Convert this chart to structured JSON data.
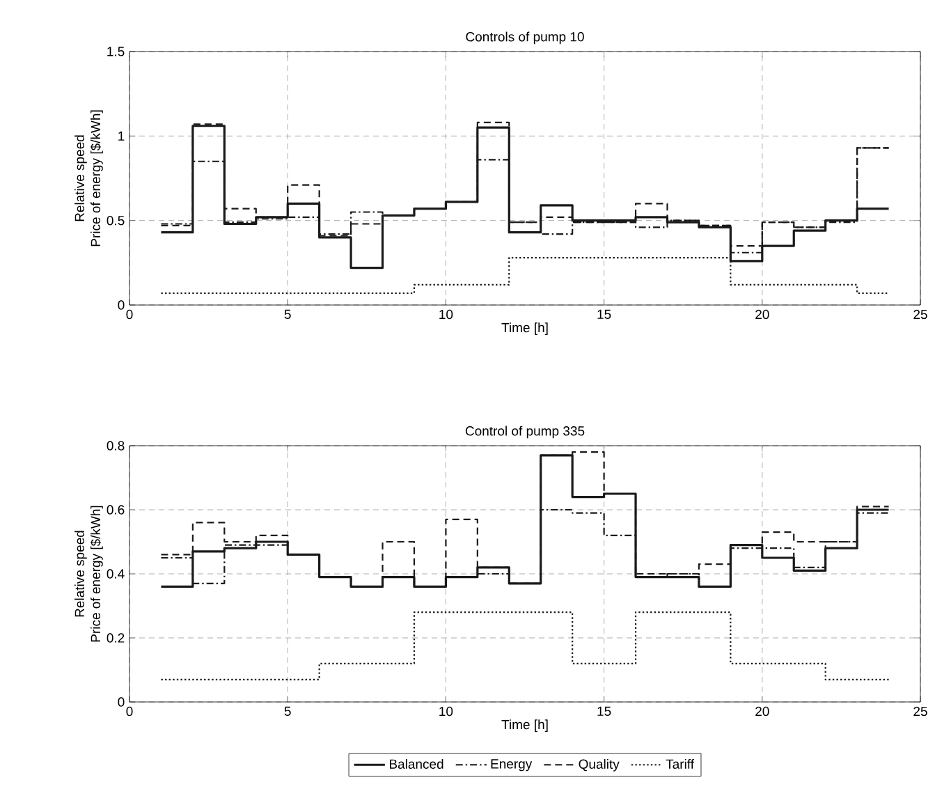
{
  "chart_data": [
    {
      "type": "step",
      "title": "Controls of pump 10",
      "xlabel": "Time [h]",
      "ylabel": "Relative speed\nPrice of energy [$/kWh]",
      "xlim": [
        0,
        25
      ],
      "xticks": [
        0,
        5,
        10,
        15,
        20,
        25
      ],
      "ylim": [
        0,
        1.5
      ],
      "yticks": [
        0,
        0.5,
        1,
        1.5
      ],
      "grid": true,
      "legend": false,
      "x": [
        1,
        2,
        3,
        4,
        5,
        6,
        7,
        8,
        9,
        10,
        11,
        12,
        13,
        14,
        15,
        16,
        17,
        18,
        19,
        20,
        21,
        22,
        23,
        24
      ],
      "series": [
        {
          "color": "#1a1a1a",
          "line_style": "solid",
          "values": [
            0.43,
            1.06,
            0.48,
            0.52,
            0.6,
            0.4,
            0.22,
            0.53,
            0.57,
            0.61,
            1.05,
            0.43,
            0.59,
            0.5,
            0.5,
            0.52,
            0.49,
            0.46,
            0.26,
            0.35,
            0.44,
            0.5,
            0.57,
            0.57
          ]
        },
        {
          "color": "#1a1a1a",
          "line_style": "dashdot",
          "values": [
            0.48,
            0.85,
            0.49,
            0.51,
            0.52,
            0.42,
            0.55,
            0.53,
            0.57,
            0.61,
            0.86,
            0.49,
            0.42,
            0.49,
            0.49,
            0.46,
            0.5,
            0.47,
            0.31,
            0.49,
            0.46,
            0.49,
            0.93,
            0.93
          ]
        },
        {
          "color": "#1a1a1a",
          "line_style": "dashed",
          "values": [
            0.47,
            1.07,
            0.57,
            0.52,
            0.71,
            0.41,
            0.48,
            0.53,
            0.57,
            0.61,
            1.08,
            0.49,
            0.52,
            0.49,
            0.49,
            0.6,
            0.5,
            0.47,
            0.35,
            0.49,
            0.46,
            0.5,
            0.93,
            0.93
          ]
        },
        {
          "color": "#1a1a1a",
          "line_style": "dotted",
          "values": [
            0.07,
            0.07,
            0.07,
            0.07,
            0.07,
            0.07,
            0.07,
            0.07,
            0.12,
            0.12,
            0.12,
            0.28,
            0.28,
            0.28,
            0.28,
            0.28,
            0.28,
            0.28,
            0.12,
            0.12,
            0.12,
            0.12,
            0.07,
            0.07
          ]
        }
      ]
    },
    {
      "type": "step",
      "title": "Control of pump 335",
      "xlabel": "Time [h]",
      "ylabel": "Relative speed\nPrice of energy [$/kWh]",
      "xlim": [
        0,
        25
      ],
      "xticks": [
        0,
        5,
        10,
        15,
        20,
        25
      ],
      "ylim": [
        0,
        0.8
      ],
      "yticks": [
        0,
        0.2,
        0.4,
        0.6,
        0.8
      ],
      "grid": true,
      "legend": "bottom",
      "x": [
        1,
        2,
        3,
        4,
        5,
        6,
        7,
        8,
        9,
        10,
        11,
        12,
        13,
        14,
        15,
        16,
        17,
        18,
        19,
        20,
        21,
        22,
        23,
        24
      ],
      "series": [
        {
          "name": "Balanced",
          "color": "#1a1a1a",
          "line_style": "solid",
          "values": [
            0.36,
            0.47,
            0.48,
            0.5,
            0.46,
            0.39,
            0.36,
            0.39,
            0.36,
            0.39,
            0.42,
            0.37,
            0.77,
            0.64,
            0.65,
            0.39,
            0.39,
            0.36,
            0.49,
            0.45,
            0.41,
            0.48,
            0.6,
            0.6
          ]
        },
        {
          "name": "Energy",
          "color": "#1a1a1a",
          "line_style": "dashdot",
          "values": [
            0.45,
            0.37,
            0.49,
            0.49,
            0.46,
            0.39,
            0.36,
            0.39,
            0.36,
            0.39,
            0.4,
            0.37,
            0.6,
            0.59,
            0.52,
            0.39,
            0.4,
            0.36,
            0.48,
            0.48,
            0.42,
            0.5,
            0.59,
            0.59
          ]
        },
        {
          "name": "Quality",
          "color": "#1a1a1a",
          "line_style": "dashed",
          "values": [
            0.46,
            0.56,
            0.5,
            0.52,
            0.46,
            0.39,
            0.36,
            0.5,
            0.36,
            0.57,
            0.42,
            0.37,
            0.77,
            0.78,
            0.65,
            0.4,
            0.4,
            0.43,
            0.49,
            0.53,
            0.5,
            0.5,
            0.61,
            0.61
          ]
        },
        {
          "name": "Tariff",
          "color": "#1a1a1a",
          "line_style": "dotted",
          "values": [
            0.07,
            0.07,
            0.07,
            0.07,
            0.07,
            0.12,
            0.12,
            0.12,
            0.28,
            0.28,
            0.28,
            0.28,
            0.28,
            0.12,
            0.12,
            0.28,
            0.28,
            0.28,
            0.12,
            0.12,
            0.12,
            0.07,
            0.07,
            0.07
          ]
        }
      ]
    }
  ]
}
